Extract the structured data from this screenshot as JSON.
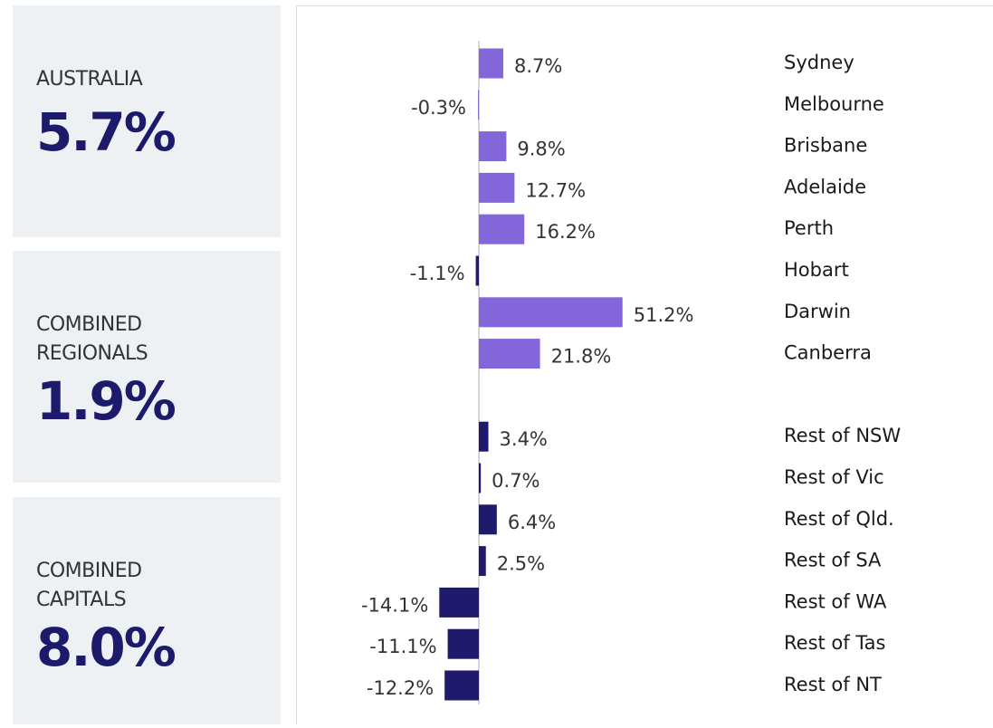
{
  "cards": [
    {
      "label": [
        "AUSTRALIA"
      ],
      "value": "5.7%"
    },
    {
      "label": [
        "COMBINED",
        "REGIONALS"
      ],
      "value": "1.9%"
    },
    {
      "label": [
        "COMBINED",
        "CAPITALS"
      ],
      "value": "8.0%"
    }
  ],
  "chart_data": {
    "type": "hbar",
    "categories": [
      "Sydney",
      "Melbourne",
      "Brisbane",
      "Adelaide",
      "Perth",
      "Hobart",
      "Darwin",
      "Canberra",
      null,
      "Rest of NSW",
      "Rest of Vic",
      "Rest of Qld.",
      "Rest of SA",
      "Rest of WA",
      "Rest of Tas",
      "Rest of NT"
    ],
    "values": [
      8.7,
      -0.3,
      9.8,
      12.7,
      16.2,
      -1.1,
      51.2,
      21.8,
      null,
      3.4,
      0.7,
      6.4,
      2.5,
      -14.1,
      -11.1,
      -12.2
    ],
    "value_labels": [
      "8.7%",
      "-0.3%",
      "9.8%",
      "12.7%",
      "16.2%",
      "-1.1%",
      "51.2%",
      "21.8%",
      null,
      "3.4%",
      "0.7%",
      "6.4%",
      "2.5%",
      "-14.1%",
      "-11.1%",
      "-12.2%"
    ],
    "colors": [
      "#8466db",
      "#8466db",
      "#8466db",
      "#8466db",
      "#8466db",
      "#1f1a6b",
      "#8466db",
      "#8466db",
      null,
      "#1f1a6b",
      "#1f1a6b",
      "#1f1a6b",
      "#1f1a6b",
      "#1f1a6b",
      "#1f1a6b",
      "#1f1a6b"
    ],
    "xlim": [
      -15,
      60
    ]
  }
}
